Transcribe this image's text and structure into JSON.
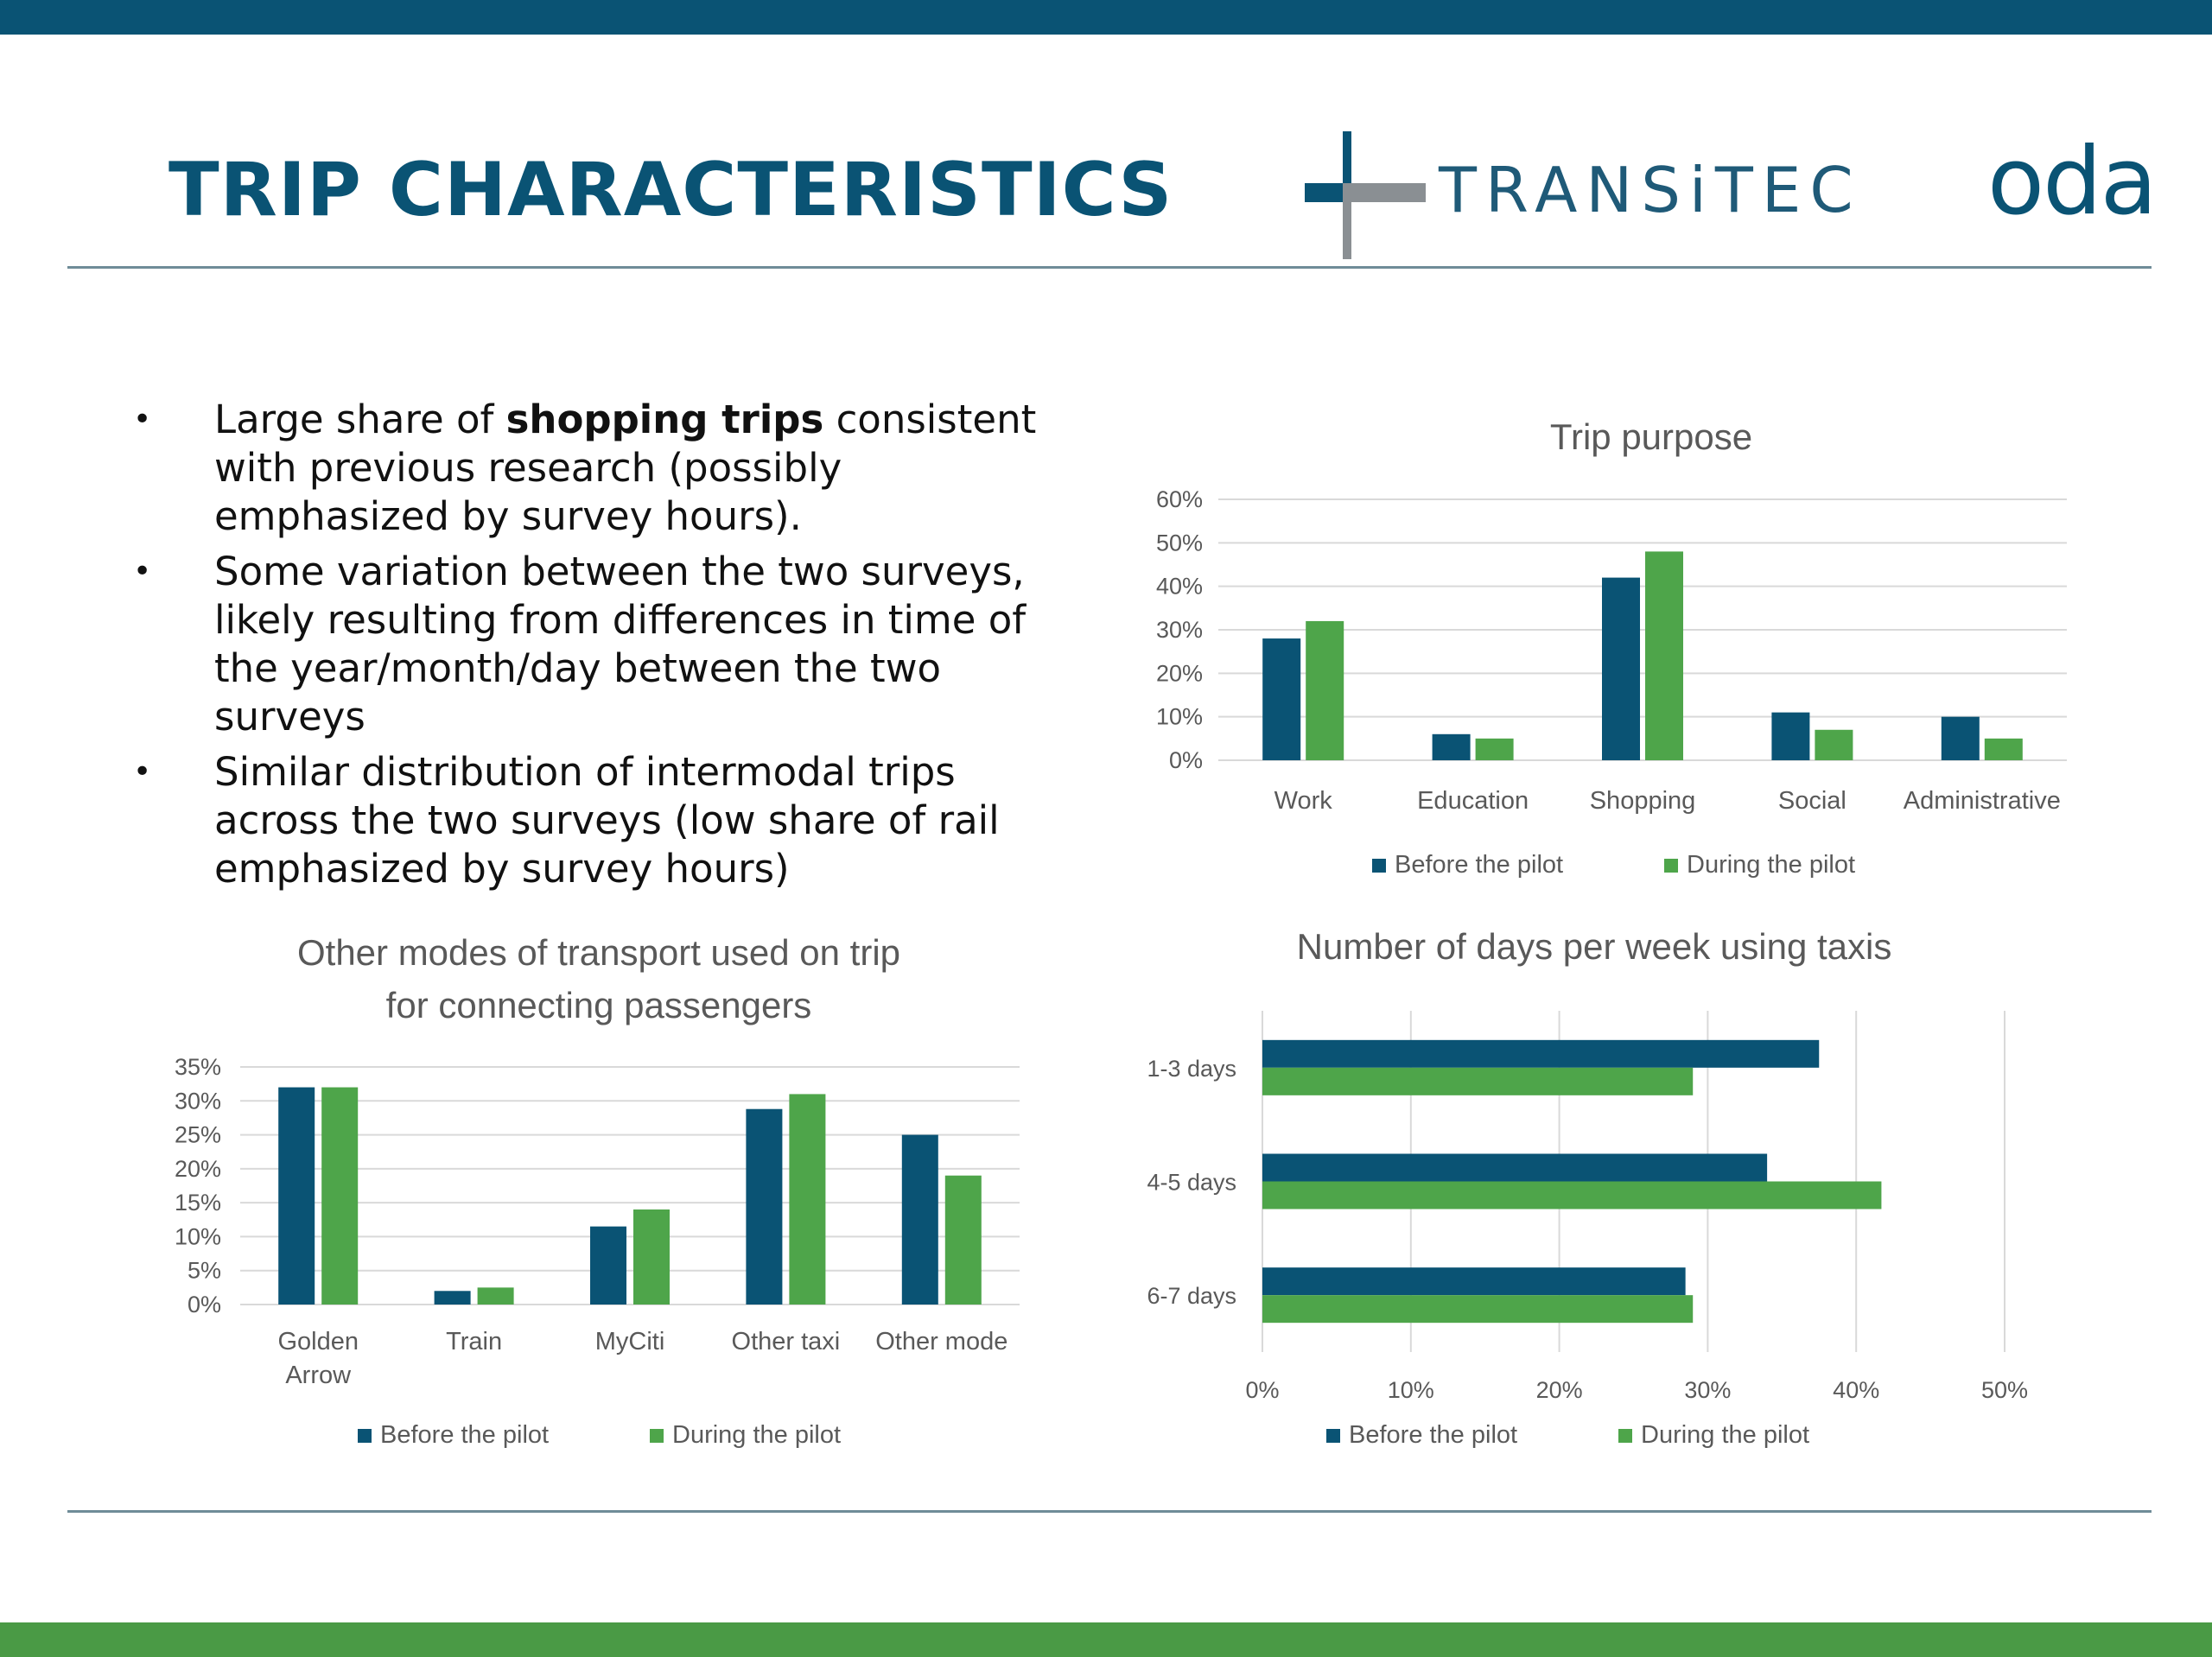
{
  "slide": {
    "title": "TRIP CHARACTERISTICS",
    "logo_text": "TRANSiTEC",
    "logo2_text": "oda"
  },
  "bullets": [
    {
      "pre": "Large share of ",
      "bold": "shopping trips",
      "post": " consistent with previous research (possibly emphasized by survey hours)."
    },
    {
      "pre": "Some variation between the two surveys, likely resulting from differences in time of the year/month/day between the two surveys",
      "bold": "",
      "post": ""
    },
    {
      "pre": "Similar distribution of intermodal trips across the two surveys (low share of rail emphasized by survey hours)",
      "bold": "",
      "post": ""
    }
  ],
  "colors": {
    "before": "#0a5374",
    "during": "#4ea54a",
    "grid": "#d9d9d9",
    "text": "#595959",
    "brand": "#0a5374",
    "accent": "#4a9a45"
  },
  "chart_data": [
    {
      "id": "trip-purpose",
      "type": "bar",
      "title": "Trip purpose",
      "categories": [
        "Work",
        "Education",
        "Shopping",
        "Social",
        "Administrative"
      ],
      "series": [
        {
          "name": "Before the pilot",
          "values": [
            28,
            6,
            42,
            11,
            10
          ]
        },
        {
          "name": "During the pilot",
          "values": [
            32,
            5,
            48,
            7,
            5
          ]
        }
      ],
      "ylim": [
        0,
        60
      ],
      "yticks": [
        "0%",
        "10%",
        "20%",
        "30%",
        "40%",
        "50%",
        "60%"
      ],
      "grid": true,
      "legend": "bottom"
    },
    {
      "id": "other-modes",
      "type": "bar",
      "title": "Other modes of transport used on trip for connecting passengers",
      "title_lines": [
        "Other modes of transport used on trip",
        "for connecting passengers"
      ],
      "categories": [
        "Golden Arrow",
        "Train",
        "MyCiti",
        "Other taxi",
        "Other mode"
      ],
      "category_lines": [
        [
          "Golden",
          "Arrow"
        ],
        [
          "Train"
        ],
        [
          "MyCiti"
        ],
        [
          "Other taxi"
        ],
        [
          "Other mode"
        ]
      ],
      "series": [
        {
          "name": "Before the pilot",
          "values": [
            32,
            2,
            11.5,
            28.8,
            25
          ]
        },
        {
          "name": "During the pilot",
          "values": [
            32,
            2.5,
            14,
            31,
            19
          ]
        }
      ],
      "ylim": [
        0,
        35
      ],
      "yticks": [
        "0%",
        "5%",
        "10%",
        "15%",
        "20%",
        "25%",
        "30%",
        "35%"
      ],
      "grid": true,
      "legend": "bottom"
    },
    {
      "id": "days-per-week",
      "type": "bar",
      "orientation": "horizontal",
      "title": "Number of days per week using  taxis",
      "categories": [
        "1-3 days",
        "4-5 days",
        "6-7 days"
      ],
      "series": [
        {
          "name": "Before the pilot",
          "values": [
            37.5,
            34,
            28.5
          ]
        },
        {
          "name": "During the pilot",
          "values": [
            29,
            41.7,
            29
          ]
        }
      ],
      "xlim": [
        0,
        50
      ],
      "xticks": [
        "0%",
        "10%",
        "20%",
        "30%",
        "40%",
        "50%"
      ],
      "grid": true,
      "legend": "bottom"
    }
  ]
}
